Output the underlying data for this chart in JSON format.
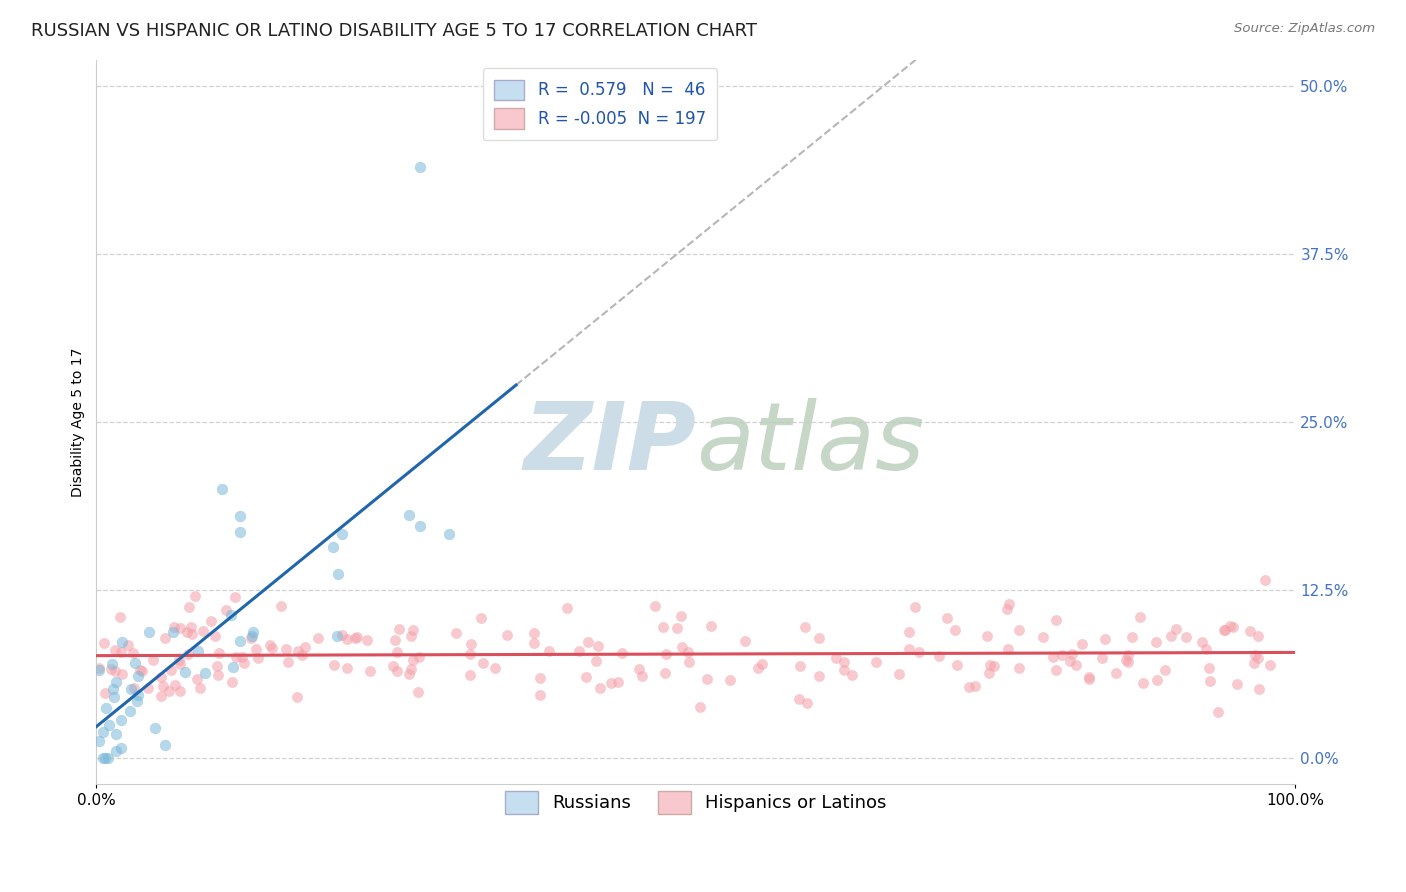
{
  "title": "RUSSIAN VS HISPANIC OR LATINO DISABILITY AGE 5 TO 17 CORRELATION CHART",
  "source": "Source: ZipAtlas.com",
  "ylabel_label": "Disability Age 5 to 17",
  "ytick_values": [
    0.0,
    12.5,
    25.0,
    37.5,
    50.0
  ],
  "xrange": [
    0,
    100
  ],
  "yrange": [
    -2,
    52
  ],
  "russian_R": 0.579,
  "russian_N": 46,
  "hispanic_R": -0.005,
  "hispanic_N": 197,
  "legend_labels": [
    "Russians",
    "Hispanics or Latinos"
  ],
  "color_russian": "#7ab8d9",
  "color_hispanic": "#f4a0a8",
  "color_russian_line": "#2166ac",
  "color_hispanic_line": "#d94f5c",
  "color_russian_fill": "#c5dff0",
  "color_hispanic_fill": "#f9c8ce",
  "background_color": "#ffffff",
  "watermark_color": "#ccdde8",
  "grid_color": "#cccccc",
  "title_fontsize": 13,
  "axis_label_fontsize": 10,
  "tick_fontsize": 11,
  "legend_fontsize": 12
}
